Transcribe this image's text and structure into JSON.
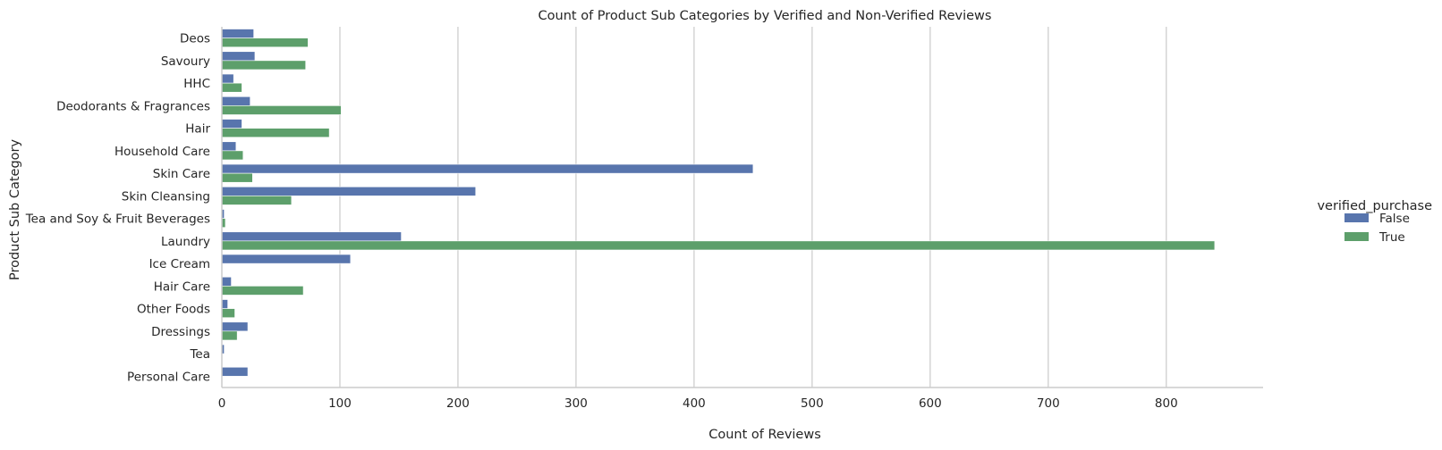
{
  "chart_data": {
    "type": "bar",
    "orientation": "horizontal",
    "title": "Count of Product Sub Categories by Verified and Non-Verified Reviews",
    "xlabel": "Count of Reviews",
    "ylabel": "Product Sub Category",
    "xlim": [
      0,
      882
    ],
    "xticks": [
      0,
      100,
      200,
      300,
      400,
      500,
      600,
      700,
      800
    ],
    "grid": "vertical",
    "legend": {
      "title": "verified_purchase",
      "placement": "right"
    },
    "categories": [
      "Deos",
      "Savoury",
      "HHC",
      "Deodorants & Fragrances",
      "Hair",
      "Household Care",
      "Skin Care",
      "Skin Cleansing",
      "Tea and Soy & Fruit Beverages",
      "Laundry",
      "Ice Cream",
      "Hair Care",
      "Other Foods",
      "Dressings",
      "Tea",
      "Personal Care"
    ],
    "series": [
      {
        "name": "False",
        "color": "#5875ad",
        "values": [
          27,
          28,
          10,
          24,
          17,
          12,
          450,
          215,
          2,
          152,
          109,
          8,
          5,
          22,
          2,
          22
        ]
      },
      {
        "name": "True",
        "color": "#5d9f6b",
        "values": [
          73,
          71,
          17,
          101,
          91,
          18,
          26,
          59,
          3,
          841,
          0,
          69,
          11,
          13,
          0,
          0
        ]
      }
    ]
  }
}
